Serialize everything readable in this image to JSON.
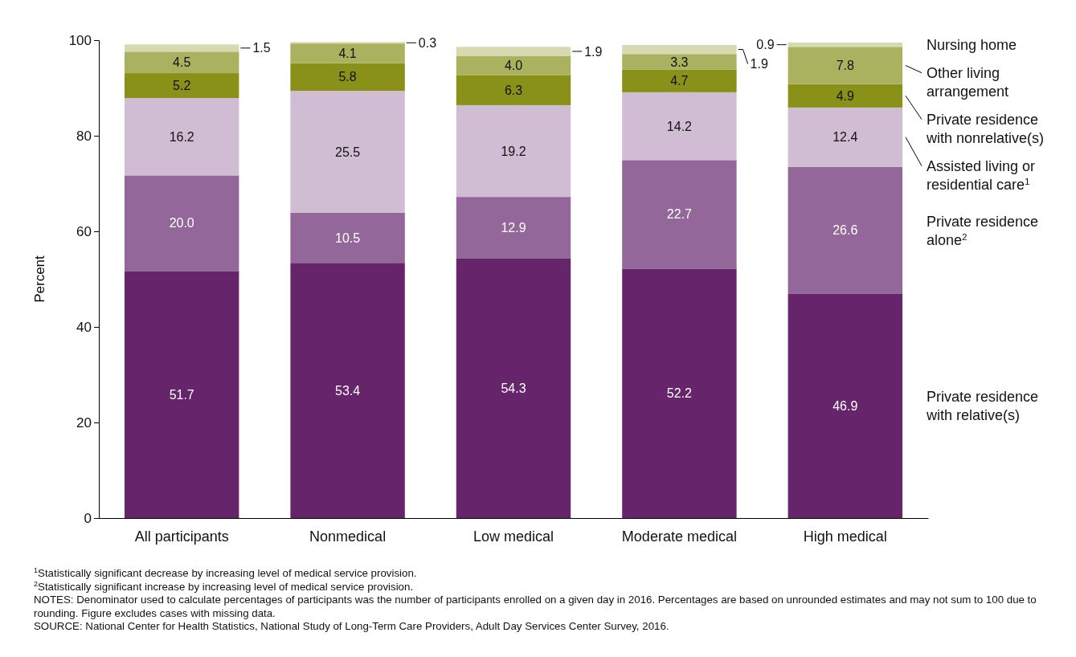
{
  "chart_data": {
    "type": "bar",
    "stacked": true,
    "ylabel": "Percent",
    "categories": [
      "All participants",
      "Nonmedical",
      "Low medical",
      "Moderate medical",
      "High medical"
    ],
    "series": [
      {
        "name": "Private residence with relative(s)",
        "color": "#66256a",
        "values": [
          51.7,
          53.4,
          54.3,
          52.2,
          46.9
        ],
        "value_labels": [
          "51.7",
          "53.4",
          "54.3",
          "52.2",
          "46.9"
        ]
      },
      {
        "name": "Private residence alone$^{2}$",
        "color": "#93679a",
        "values": [
          20.0,
          10.5,
          12.9,
          22.7,
          26.6
        ],
        "value_labels": [
          "20.0",
          "10.5",
          "12.9",
          "22.7",
          "26.6"
        ]
      },
      {
        "name": "Assisted living or residential care$^{1}$",
        "color": "#d1bdd3",
        "values": [
          16.2,
          25.5,
          19.2,
          14.2,
          12.4
        ],
        "value_labels": [
          "16.2",
          "25.5",
          "19.2",
          "14.2",
          "12.4"
        ]
      },
      {
        "name": "Private residence with nonrelative(s)",
        "color": "#899118",
        "values": [
          5.2,
          5.8,
          6.3,
          4.7,
          4.9
        ],
        "value_labels": [
          "5.2",
          "5.8",
          "6.3",
          "4.7",
          "4.9"
        ]
      },
      {
        "name": "Other living arrangement",
        "color": "#abb25f",
        "values": [
          4.5,
          4.1,
          4.0,
          3.3,
          7.8
        ],
        "value_labels": [
          "4.5",
          "4.1",
          "4.0",
          "3.3",
          "7.8"
        ]
      },
      {
        "name": "Nursing home",
        "color": "#d7dab1",
        "values": [
          1.5,
          0.3,
          1.9,
          1.9,
          0.9
        ],
        "value_labels": [
          "1.5",
          "0.3",
          "1.9",
          "1.9",
          "0.9"
        ]
      }
    ],
    "ylim": [
      0,
      100
    ],
    "yticks": [
      0,
      20,
      40,
      60,
      80,
      100
    ],
    "grid": false,
    "legend": "right",
    "annotations": [
      "$^{1}$Statistically significant decrease by increasing level of medical service provision.",
      "$^{2}$Statistically significant increase by increasing level of medical service provision.",
      "NOTES: Denominator used to calculate percentages of participants was the number of participants enrolled on a given day in 2016. Percentages are based on unrounded estimates and may not sum to 100 due to rounding. Figure excludes cases with missing data.",
      "SOURCE: National Center for Health Statistics, National Study of Long-Term Care Providers, Adult Day Services Center Survey, 2016."
    ]
  }
}
